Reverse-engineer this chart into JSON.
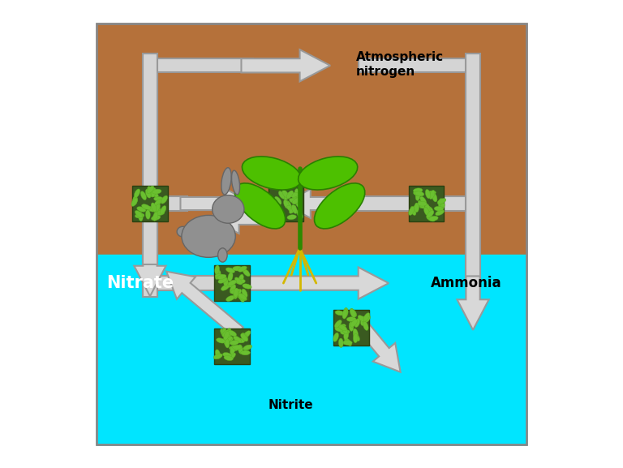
{
  "bg_color": "#ffffff",
  "sky_color": "#00e5ff",
  "soil_color": "#b5713a",
  "arrow_face": "#d8d8d8",
  "arrow_edge": "#999999",
  "arrow_lw": 1.5,
  "pipe_fc": "#d4d4d4",
  "pipe_ec": "#999999",
  "labels": {
    "atm_nitrogen": "Atmospheric\nnitrogen",
    "nitrate": "Nitrate",
    "ammonia": "Ammonia",
    "nitrite": "Nitrite"
  },
  "bact_bg": "#3a5a20",
  "bact_fg": "#6abf30",
  "bact_fg2": "#5aaf20",
  "plant_stem": "#2d8a00",
  "plant_leaf": "#4dc000",
  "plant_root": "#d4b800",
  "rabbit_color": "#909090",
  "rabbit_edge": "#666666"
}
